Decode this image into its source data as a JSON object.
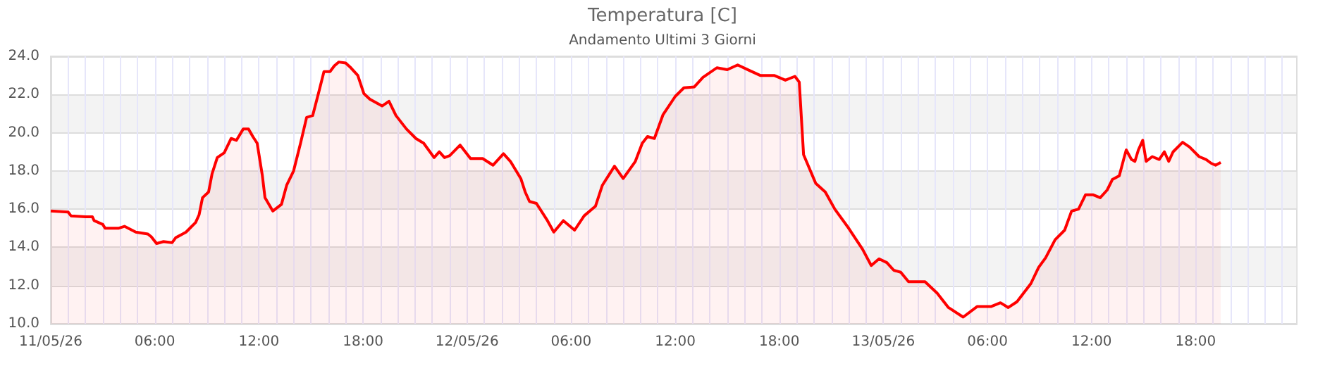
{
  "chart_data": {
    "type": "area",
    "title": "Temperatura [C]",
    "subtitle": "Andamento Ultimi 3 Giorni",
    "color": "#ff0000",
    "marker": "none",
    "grid": true,
    "xlim": [
      "--05-11T00:00",
      "--05-13T23:50"
    ],
    "ylim": [
      10,
      24
    ],
    "yticks": [
      {
        "value": 10,
        "label": "10.0"
      },
      {
        "value": 12,
        "label": "12.0"
      },
      {
        "value": 14,
        "label": "14.0"
      },
      {
        "value": 16,
        "label": "16.0"
      },
      {
        "value": 18,
        "label": "18.0"
      },
      {
        "value": 20,
        "label": "20.0"
      },
      {
        "value": 22,
        "label": "22.0"
      },
      {
        "value": 24,
        "label": "24.0"
      }
    ],
    "xticks": [
      {
        "value": "--05-11T00:00",
        "label": "11/05/26"
      },
      {
        "value": "--05-11T01:00",
        "label": null
      },
      {
        "value": "--05-11T02:00",
        "label": null
      },
      {
        "value": "--05-11T03:00",
        "label": null
      },
      {
        "value": "--05-11T04:00",
        "label": null
      },
      {
        "value": "--05-11T05:00",
        "label": null
      },
      {
        "value": "--05-11T06:00",
        "label": "06:00"
      },
      {
        "value": "--05-11T07:00",
        "label": null
      },
      {
        "value": "--05-11T08:00",
        "label": null
      },
      {
        "value": "--05-11T09:00",
        "label": null
      },
      {
        "value": "--05-11T10:00",
        "label": null
      },
      {
        "value": "--05-11T11:00",
        "label": null
      },
      {
        "value": "--05-11T12:00",
        "label": "12:00"
      },
      {
        "value": "--05-11T13:00",
        "label": null
      },
      {
        "value": "--05-11T14:00",
        "label": null
      },
      {
        "value": "--05-11T15:00",
        "label": null
      },
      {
        "value": "--05-11T16:00",
        "label": null
      },
      {
        "value": "--05-11T17:00",
        "label": null
      },
      {
        "value": "--05-11T18:00",
        "label": "18:00"
      },
      {
        "value": "--05-11T19:00",
        "label": null
      },
      {
        "value": "--05-11T20:00",
        "label": null
      },
      {
        "value": "--05-11T21:00",
        "label": null
      },
      {
        "value": "--05-11T22:00",
        "label": null
      },
      {
        "value": "--05-11T23:00",
        "label": null
      },
      {
        "value": "--05-12T00:00",
        "label": "12/05/26"
      },
      {
        "value": "--05-12T01:00",
        "label": null
      },
      {
        "value": "--05-12T02:00",
        "label": null
      },
      {
        "value": "--05-12T03:00",
        "label": null
      },
      {
        "value": "--05-12T04:00",
        "label": null
      },
      {
        "value": "--05-12T05:00",
        "label": null
      },
      {
        "value": "--05-12T06:00",
        "label": "06:00"
      },
      {
        "value": "--05-12T07:00",
        "label": null
      },
      {
        "value": "--05-12T08:00",
        "label": null
      },
      {
        "value": "--05-12T09:00",
        "label": null
      },
      {
        "value": "--05-12T10:00",
        "label": null
      },
      {
        "value": "--05-12T11:00",
        "label": null
      },
      {
        "value": "--05-12T12:00",
        "label": "12:00"
      },
      {
        "value": "--05-12T13:00",
        "label": null
      },
      {
        "value": "--05-12T14:00",
        "label": null
      },
      {
        "value": "--05-12T15:00",
        "label": null
      },
      {
        "value": "--05-12T16:00",
        "label": null
      },
      {
        "value": "--05-12T17:00",
        "label": null
      },
      {
        "value": "--05-12T18:00",
        "label": "18:00"
      },
      {
        "value": "--05-12T19:00",
        "label": null
      },
      {
        "value": "--05-12T20:00",
        "label": null
      },
      {
        "value": "--05-12T21:00",
        "label": null
      },
      {
        "value": "--05-12T22:00",
        "label": null
      },
      {
        "value": "--05-12T23:00",
        "label": null
      },
      {
        "value": "--05-13T00:00",
        "label": "13/05/26"
      },
      {
        "value": "--05-13T01:00",
        "label": null
      },
      {
        "value": "--05-13T02:00",
        "label": null
      },
      {
        "value": "--05-13T03:00",
        "label": null
      },
      {
        "value": "--05-13T04:00",
        "label": null
      },
      {
        "value": "--05-13T05:00",
        "label": null
      },
      {
        "value": "--05-13T06:00",
        "label": "06:00"
      },
      {
        "value": "--05-13T07:00",
        "label": null
      },
      {
        "value": "--05-13T08:00",
        "label": null
      },
      {
        "value": "--05-13T09:00",
        "label": null
      },
      {
        "value": "--05-13T10:00",
        "label": null
      },
      {
        "value": "--05-13T11:00",
        "label": null
      },
      {
        "value": "--05-13T12:00",
        "label": "12:00"
      },
      {
        "value": "--05-13T13:00",
        "label": null
      },
      {
        "value": "--05-13T14:00",
        "label": null
      },
      {
        "value": "--05-13T15:00",
        "label": null
      },
      {
        "value": "--05-13T16:00",
        "label": null
      },
      {
        "value": "--05-13T17:00",
        "label": null
      },
      {
        "value": "--05-13T18:00",
        "label": "18:00"
      },
      {
        "value": "--05-13T19:00",
        "label": null
      },
      {
        "value": "--05-13T20:00",
        "label": null
      },
      {
        "value": "--05-13T21:00",
        "label": null
      },
      {
        "value": "--05-13T22:00",
        "label": null
      },
      {
        "value": "--05-13T23:00",
        "label": null
      }
    ],
    "x": [
      "--05-11T00:00",
      "--05-11T01:00",
      "--05-11T01:10",
      "--05-11T02:00",
      "--05-11T02:24",
      "--05-11T02:30",
      "--05-11T03:00",
      "--05-11T03:08",
      "--05-11T03:54",
      "--05-11T04:15",
      "--05-11T04:54",
      "--05-11T05:36",
      "--05-11T05:48",
      "--05-11T06:06",
      "--05-11T06:30",
      "--05-11T07:00",
      "--05-11T07:12",
      "--05-11T07:48",
      "--05-11T08:21",
      "--05-11T08:33",
      "--05-11T08:45",
      "--05-11T09:06",
      "--05-11T09:18",
      "--05-11T09:36",
      "--05-11T10:00",
      "--05-11T10:24",
      "--05-11T10:42",
      "--05-11T11:06",
      "--05-11T11:24",
      "--05-11T11:39",
      "--05-11T11:54",
      "--05-11T12:12",
      "--05-11T12:21",
      "--05-11T12:48",
      "--05-11T13:18",
      "--05-11T13:36",
      "--05-11T14:00",
      "--05-11T14:24",
      "--05-11T14:45",
      "--05-11T15:06",
      "--05-11T15:30",
      "--05-11T15:45",
      "--05-11T16:06",
      "--05-11T16:21",
      "--05-11T16:36",
      "--05-11T17:00",
      "--05-11T17:18",
      "--05-11T17:42",
      "--05-11T18:03",
      "--05-11T18:24",
      "--05-11T19:06",
      "--05-11T19:30",
      "--05-11T19:54",
      "--05-11T20:30",
      "--05-11T21:03",
      "--05-11T21:30",
      "--05-11T22:06",
      "--05-11T22:24",
      "--05-11T22:42",
      "--05-11T23:00",
      "--05-11T23:36",
      "--05-12T00:12",
      "--05-12T00:54",
      "--05-12T01:30",
      "--05-12T02:06",
      "--05-12T02:30",
      "--05-12T03:06",
      "--05-12T03:21",
      "--05-12T03:36",
      "--05-12T04:00",
      "--05-12T04:36",
      "--05-12T05:00",
      "--05-12T05:33",
      "--05-12T06:12",
      "--05-12T06:45",
      "--05-12T07:24",
      "--05-12T07:48",
      "--05-12T08:30",
      "--05-12T09:00",
      "--05-12T09:42",
      "--05-12T10:06",
      "--05-12T10:24",
      "--05-12T10:48",
      "--05-12T11:18",
      "--05-12T12:00",
      "--05-12T12:30",
      "--05-12T13:06",
      "--05-12T13:36",
      "--05-12T14:24",
      "--05-12T15:00",
      "--05-12T15:36",
      "--05-12T16:18",
      "--05-12T16:54",
      "--05-12T17:42",
      "--05-12T18:21",
      "--05-12T18:54",
      "--05-12T19:09",
      "--05-12T19:24",
      "--05-12T20:06",
      "--05-12T20:39",
      "--05-12T21:12",
      "--05-12T22:00",
      "--05-12T22:48",
      "--05-12T23:18",
      "--05-12T23:45",
      "--05-13T00:12",
      "--05-13T00:36",
      "--05-13T01:00",
      "--05-13T01:27",
      "--05-13T02:24",
      "--05-13T03:06",
      "--05-13T03:45",
      "--05-13T04:36",
      "--05-13T05:24",
      "--05-13T06:12",
      "--05-13T06:45",
      "--05-13T07:12",
      "--05-13T07:42",
      "--05-13T08:30",
      "--05-13T08:57",
      "--05-13T09:21",
      "--05-13T09:54",
      "--05-13T10:27",
      "--05-13T10:51",
      "--05-13T11:15",
      "--05-13T11:39",
      "--05-13T12:06",
      "--05-13T12:30",
      "--05-13T12:54",
      "--05-13T13:12",
      "--05-13T13:36",
      "--05-13T13:51",
      "--05-13T14:00",
      "--05-13T14:18",
      "--05-13T14:30",
      "--05-13T14:42",
      "--05-13T14:57",
      "--05-13T15:09",
      "--05-13T15:30",
      "--05-13T15:54",
      "--05-13T16:12",
      "--05-13T16:27",
      "--05-13T16:42",
      "--05-13T17:15",
      "--05-13T17:39",
      "--05-13T18:12",
      "--05-13T18:36",
      "--05-13T18:54",
      "--05-13T19:09",
      "--05-13T19:27"
    ],
    "values": [
      15.9,
      15.85,
      15.65,
      15.6,
      15.6,
      15.4,
      15.2,
      15.0,
      15.0,
      15.1,
      14.8,
      14.7,
      14.55,
      14.2,
      14.3,
      14.25,
      14.5,
      14.8,
      15.3,
      15.7,
      16.6,
      16.9,
      17.85,
      18.7,
      18.95,
      19.7,
      19.6,
      20.2,
      20.2,
      19.8,
      19.45,
      17.75,
      16.6,
      15.9,
      16.25,
      17.25,
      18.0,
      19.45,
      20.8,
      20.9,
      22.3,
      23.2,
      23.2,
      23.5,
      23.7,
      23.65,
      23.4,
      23.0,
      22.05,
      21.75,
      21.4,
      21.65,
      20.9,
      20.2,
      19.7,
      19.45,
      18.7,
      19.0,
      18.7,
      18.8,
      19.35,
      18.65,
      18.65,
      18.3,
      18.9,
      18.5,
      17.6,
      16.9,
      16.4,
      16.3,
      15.45,
      14.8,
      15.4,
      14.9,
      15.65,
      16.15,
      17.25,
      18.25,
      17.6,
      18.5,
      19.45,
      19.8,
      19.7,
      20.95,
      21.9,
      22.35,
      22.4,
      22.9,
      23.4,
      23.3,
      23.55,
      23.25,
      23.0,
      23.0,
      22.75,
      22.95,
      22.65,
      18.85,
      17.35,
      16.9,
      16.0,
      15.0,
      13.9,
      13.05,
      13.4,
      13.2,
      12.8,
      12.7,
      12.2,
      12.2,
      11.6,
      10.85,
      10.35,
      10.9,
      10.9,
      11.1,
      10.85,
      11.15,
      12.1,
      12.95,
      13.45,
      14.4,
      14.9,
      15.9,
      16.0,
      16.75,
      16.75,
      16.6,
      17.0,
      17.55,
      17.75,
      18.6,
      19.1,
      18.6,
      18.5,
      19.1,
      19.6,
      18.5,
      18.75,
      18.6,
      19.0,
      18.5,
      19.0,
      19.5,
      19.25,
      18.75,
      18.6,
      18.4,
      18.3,
      18.45
    ]
  }
}
